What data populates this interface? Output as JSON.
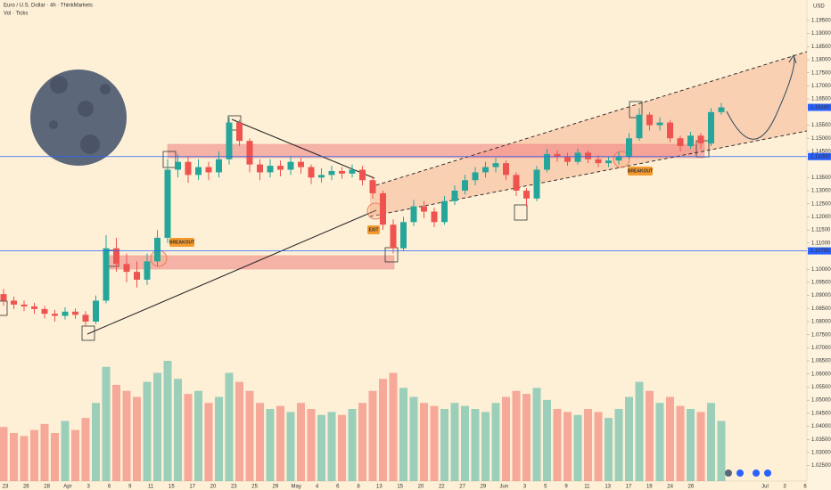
{
  "chart_data": {
    "type": "candlestick",
    "title": "Euro / U.S. Dollar · 4h · ThinkMarkets",
    "subtitle": "Vol · Ticks",
    "currency": "USD",
    "up_color": "#26a69a",
    "down_color": "#ef5350",
    "ylim": [
      1.0191,
      1.2028
    ],
    "vlim": [
      0,
      1600
    ],
    "yticks": [
      {
        "value": 1.195,
        "label": "1.19500"
      },
      {
        "value": 1.19,
        "label": "1.19000"
      },
      {
        "value": 1.185,
        "label": "1.18500"
      },
      {
        "value": 1.18,
        "label": "1.18000"
      },
      {
        "value": 1.175,
        "label": "1.17500"
      },
      {
        "value": 1.17,
        "label": "1.17000"
      },
      {
        "value": 1.165,
        "label": "1.16500"
      },
      {
        "value": 1.155,
        "label": "1.15500"
      },
      {
        "value": 1.15,
        "label": "1.15000"
      },
      {
        "value": 1.145,
        "label": "1.14500"
      },
      {
        "value": 1.135,
        "label": "1.13500"
      },
      {
        "value": 1.13,
        "label": "1.13000"
      },
      {
        "value": 1.125,
        "label": "1.12500"
      },
      {
        "value": 1.12,
        "label": "1.12000"
      },
      {
        "value": 1.115,
        "label": "1.11500"
      },
      {
        "value": 1.11,
        "label": "1.11000"
      },
      {
        "value": 1.1,
        "label": "1.10000"
      },
      {
        "value": 1.095,
        "label": "1.09500"
      },
      {
        "value": 1.09,
        "label": "1.09000"
      },
      {
        "value": 1.085,
        "label": "1.08500"
      },
      {
        "value": 1.08,
        "label": "1.08000"
      },
      {
        "value": 1.075,
        "label": "1.07500"
      },
      {
        "value": 1.07,
        "label": "1.07000"
      },
      {
        "value": 1.065,
        "label": "1.06500"
      },
      {
        "value": 1.06,
        "label": "1.06000"
      },
      {
        "value": 1.055,
        "label": "1.05500"
      },
      {
        "value": 1.05,
        "label": "1.05000"
      },
      {
        "value": 1.045,
        "label": "1.04500"
      },
      {
        "value": 1.04,
        "label": "1.04000"
      },
      {
        "value": 1.035,
        "label": "1.03500"
      },
      {
        "value": 1.03,
        "label": "1.03000"
      },
      {
        "value": 1.025,
        "label": "1.02500"
      }
    ],
    "levels": [
      {
        "value": 1.1618,
        "label": "1.16180",
        "color": "#2962ff"
      },
      {
        "value": 1.143,
        "label": "1.14300",
        "color": "#2962ff"
      },
      {
        "value": 1.107,
        "label": "1.10700",
        "color": "#2962ff"
      }
    ],
    "xlabels": [
      "23",
      "26",
      "28",
      "Apr",
      "3",
      "6",
      "9",
      "11",
      "15",
      "17",
      "20",
      "23",
      "25",
      "29",
      "May",
      "4",
      "6",
      "8",
      "13",
      "15",
      "20",
      "22",
      "27",
      "29",
      "Jun",
      "3",
      "5",
      "9",
      "11",
      "13",
      "17",
      "19",
      "24",
      "26",
      "Jul",
      "3",
      "6"
    ],
    "annotations": [
      "BREAKOUT",
      "EXIT",
      "BREAKOUT"
    ],
    "open": [
      1.0905,
      1.088,
      1.0865,
      1.0858,
      1.0848,
      1.083,
      1.0822,
      1.0838,
      1.0826,
      1.08,
      1.088,
      1.108,
      1.102,
      1.099,
      1.096,
      1.103,
      1.112,
      1.138,
      1.141,
      1.136,
      1.139,
      1.137,
      1.142,
      1.156,
      1.149,
      1.14,
      1.137,
      1.1395,
      1.138,
      1.141,
      1.139,
      1.135,
      1.136,
      1.1375,
      1.1365,
      1.138,
      1.134,
      1.129,
      1.117,
      1.108,
      1.118,
      1.124,
      1.122,
      1.118,
      1.126,
      1.13,
      1.134,
      1.137,
      1.139,
      1.1405,
      1.136,
      1.13,
      1.127,
      1.138,
      1.144,
      1.143,
      1.141,
      1.1445,
      1.142,
      1.1405,
      1.1415,
      1.143,
      1.15,
      1.159,
      1.155,
      1.156,
      1.15,
      1.147,
      1.151,
      1.148,
      1.16
    ],
    "high": [
      1.0925,
      1.0895,
      1.088,
      1.0872,
      1.086,
      1.0845,
      1.0855,
      1.085,
      1.084,
      1.09,
      1.113,
      1.112,
      1.106,
      1.103,
      1.106,
      1.115,
      1.142,
      1.144,
      1.143,
      1.142,
      1.141,
      1.145,
      1.158,
      1.157,
      1.15,
      1.142,
      1.142,
      1.1415,
      1.143,
      1.1425,
      1.14,
      1.1385,
      1.1395,
      1.139,
      1.14,
      1.1395,
      1.1355,
      1.13,
      1.119,
      1.12,
      1.1265,
      1.126,
      1.1235,
      1.128,
      1.132,
      1.136,
      1.139,
      1.141,
      1.1425,
      1.1415,
      1.137,
      1.131,
      1.1395,
      1.146,
      1.1455,
      1.1445,
      1.146,
      1.1455,
      1.1435,
      1.143,
      1.145,
      1.152,
      1.1615,
      1.16,
      1.158,
      1.157,
      1.151,
      1.1525,
      1.152,
      1.1615,
      1.1635
    ],
    "low": [
      1.086,
      1.0848,
      1.084,
      1.083,
      1.0812,
      1.08,
      1.0808,
      1.081,
      1.0785,
      1.079,
      1.087,
      1.099,
      1.095,
      1.093,
      1.094,
      1.101,
      1.11,
      1.135,
      1.133,
      1.134,
      1.134,
      1.135,
      1.14,
      1.147,
      1.137,
      1.134,
      1.135,
      1.1355,
      1.136,
      1.1365,
      1.1325,
      1.133,
      1.134,
      1.1345,
      1.135,
      1.132,
      1.127,
      1.115,
      1.106,
      1.107,
      1.1165,
      1.1195,
      1.116,
      1.117,
      1.1245,
      1.1285,
      1.132,
      1.135,
      1.137,
      1.134,
      1.128,
      1.124,
      1.126,
      1.137,
      1.141,
      1.1395,
      1.14,
      1.1405,
      1.139,
      1.139,
      1.14,
      1.142,
      1.149,
      1.153,
      1.153,
      1.1485,
      1.145,
      1.146,
      1.146,
      1.147,
      1.159
    ],
    "close": [
      1.088,
      1.0865,
      1.0858,
      1.0848,
      1.083,
      1.0822,
      1.0838,
      1.0826,
      1.08,
      1.088,
      1.108,
      1.102,
      1.099,
      1.096,
      1.103,
      1.112,
      1.138,
      1.141,
      1.136,
      1.139,
      1.137,
      1.142,
      1.156,
      1.149,
      1.14,
      1.137,
      1.1395,
      1.138,
      1.141,
      1.139,
      1.135,
      1.136,
      1.1375,
      1.1365,
      1.138,
      1.134,
      1.129,
      1.117,
      1.108,
      1.118,
      1.124,
      1.122,
      1.118,
      1.126,
      1.13,
      1.134,
      1.137,
      1.139,
      1.1405,
      1.136,
      1.13,
      1.127,
      1.138,
      1.144,
      1.143,
      1.141,
      1.1445,
      1.142,
      1.1405,
      1.1415,
      1.143,
      1.15,
      1.159,
      1.155,
      1.156,
      1.15,
      1.147,
      1.151,
      1.148,
      1.16,
      1.1618
    ],
    "volume": [
      180,
      160,
      150,
      170,
      190,
      160,
      200,
      170,
      210,
      260,
      380,
      320,
      300,
      280,
      330,
      360,
      400,
      340,
      290,
      300,
      260,
      280,
      360,
      330,
      300,
      260,
      240,
      250,
      230,
      260,
      240,
      220,
      230,
      220,
      240,
      260,
      300,
      340,
      360,
      310,
      280,
      260,
      250,
      240,
      260,
      250,
      240,
      230,
      260,
      280,
      300,
      290,
      310,
      270,
      240,
      230,
      220,
      240,
      230,
      210,
      240,
      280,
      330,
      300,
      260,
      280,
      250,
      240,
      230,
      260,
      200
    ]
  }
}
